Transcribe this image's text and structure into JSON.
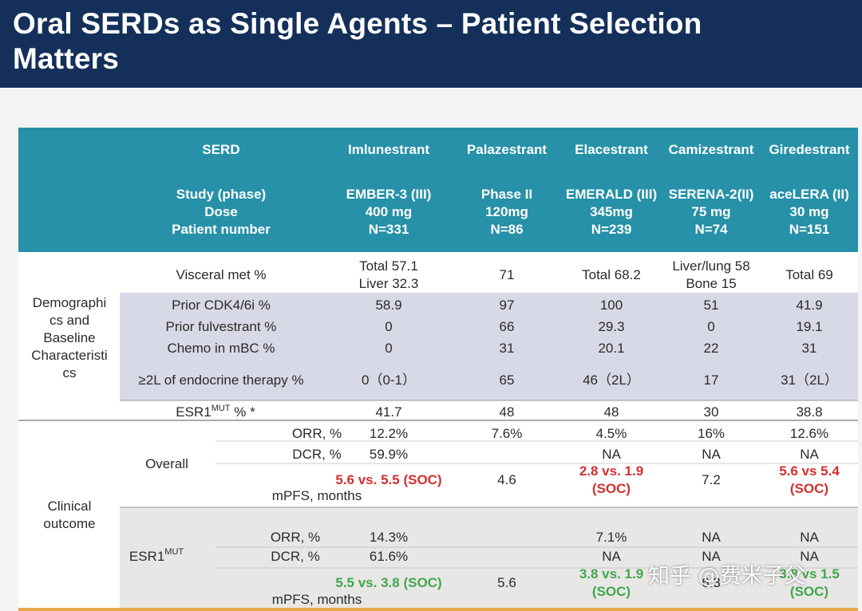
{
  "title": "Oral SERDs as Single Agents – Patient Selection Matters",
  "watermark": "知乎 @费米子父",
  "table": {
    "header": {
      "row1_label": "SERD",
      "row2_label": [
        "Study (phase)",
        "Dose",
        "Patient number"
      ],
      "drugs": [
        {
          "name": "Imlunestrant",
          "study": "EMBER-3 (III)",
          "dose": "400 mg",
          "n": "N=331"
        },
        {
          "name": "Palazestrant",
          "study": "Phase II",
          "dose": "120mg",
          "n": "N=86"
        },
        {
          "name": "Elacestrant",
          "study": "EMERALD (III)",
          "dose": "345mg",
          "n": "N=239"
        },
        {
          "name": "Camizestrant",
          "study": "SERENA-2(II)",
          "dose": "75 mg",
          "n": "N=74"
        },
        {
          "name": "Giredestrant",
          "study": "aceLERA (II)",
          "dose": "30 mg",
          "n": "N=151"
        }
      ]
    },
    "demographics_group": [
      "Demographi",
      "cs and",
      "Baseline",
      "Characteristi",
      "cs"
    ],
    "clinical_group": [
      "Clinical",
      "outcome"
    ],
    "overall_label": "Overall",
    "esr1_label": "ESR1",
    "esr1_label_sup": "MUT",
    "rows": {
      "visceral": {
        "label": "Visceral met %",
        "values": [
          [
            "Total 57.1",
            "Liver 32.3"
          ],
          [
            "71"
          ],
          [
            "Total  68.2"
          ],
          [
            "Liver/lung 58",
            "Bone 15"
          ],
          [
            "Total  69"
          ]
        ]
      },
      "cdk": {
        "label": "Prior CDK4/6i %",
        "values": [
          "58.9",
          "97",
          "100",
          "51",
          "41.9"
        ]
      },
      "fulv": {
        "label": "Prior fulvestrant %",
        "values": [
          "0",
          "66",
          "29.3",
          "0",
          "19.1"
        ]
      },
      "chemo": {
        "label": "Chemo in mBC %",
        "values": [
          "0",
          "31",
          "20.1",
          "22",
          "31"
        ]
      },
      "endo": {
        "label": "≥2L of endocrine therapy %",
        "values": [
          "0（0-1）",
          "65",
          "46（2L）",
          "17",
          "31（2L）"
        ]
      },
      "esr1": {
        "label": "ESR1",
        "label_sup": "MUT",
        "label_suffix": " % *",
        "values": [
          "41.7",
          "48",
          "48",
          "30",
          "38.8"
        ]
      },
      "orr_all": {
        "label": "ORR, %",
        "values": [
          "12.2%",
          "7.6%",
          "4.5%",
          "16%",
          "12.6%"
        ]
      },
      "dcr_all": {
        "label": "DCR, %",
        "values": [
          "59.9%",
          "",
          "NA",
          "NA",
          "NA"
        ]
      },
      "mpfs_all": {
        "label": "mPFS, months",
        "values": [
          [
            "5.6 vs. 5.5 (SOC)"
          ],
          [
            "4.6"
          ],
          [
            "2.8 vs. 1.9",
            "(SOC)"
          ],
          [
            "7.2"
          ],
          [
            "5.6 vs 5.4",
            "(SOC)"
          ]
        ]
      },
      "orr_mut": {
        "label": "ORR, %",
        "values": [
          "14.3%",
          "",
          "7.1%",
          "NA",
          "NA"
        ]
      },
      "dcr_mut": {
        "label": "DCR, %",
        "values": [
          "61.6%",
          "",
          "NA",
          "NA",
          "NA"
        ]
      },
      "mpfs_mut": {
        "label": "mPFS, months",
        "values": [
          [
            "5.5 vs. 3.8 (SOC)"
          ],
          [
            "5.6"
          ],
          [
            "3.8 vs. 1.9",
            "(SOC)"
          ],
          [
            "6.3"
          ],
          [
            "3.8 vs 1.5",
            "(SOC)"
          ]
        ]
      }
    }
  },
  "colors": {
    "header_bg": "#14305a",
    "table_header": "#2691a8",
    "band": "#d8d9e6",
    "band_clinical": "#e9e6e6",
    "highlight_red": "#d32f2f",
    "highlight_green": "#3fa84a"
  }
}
